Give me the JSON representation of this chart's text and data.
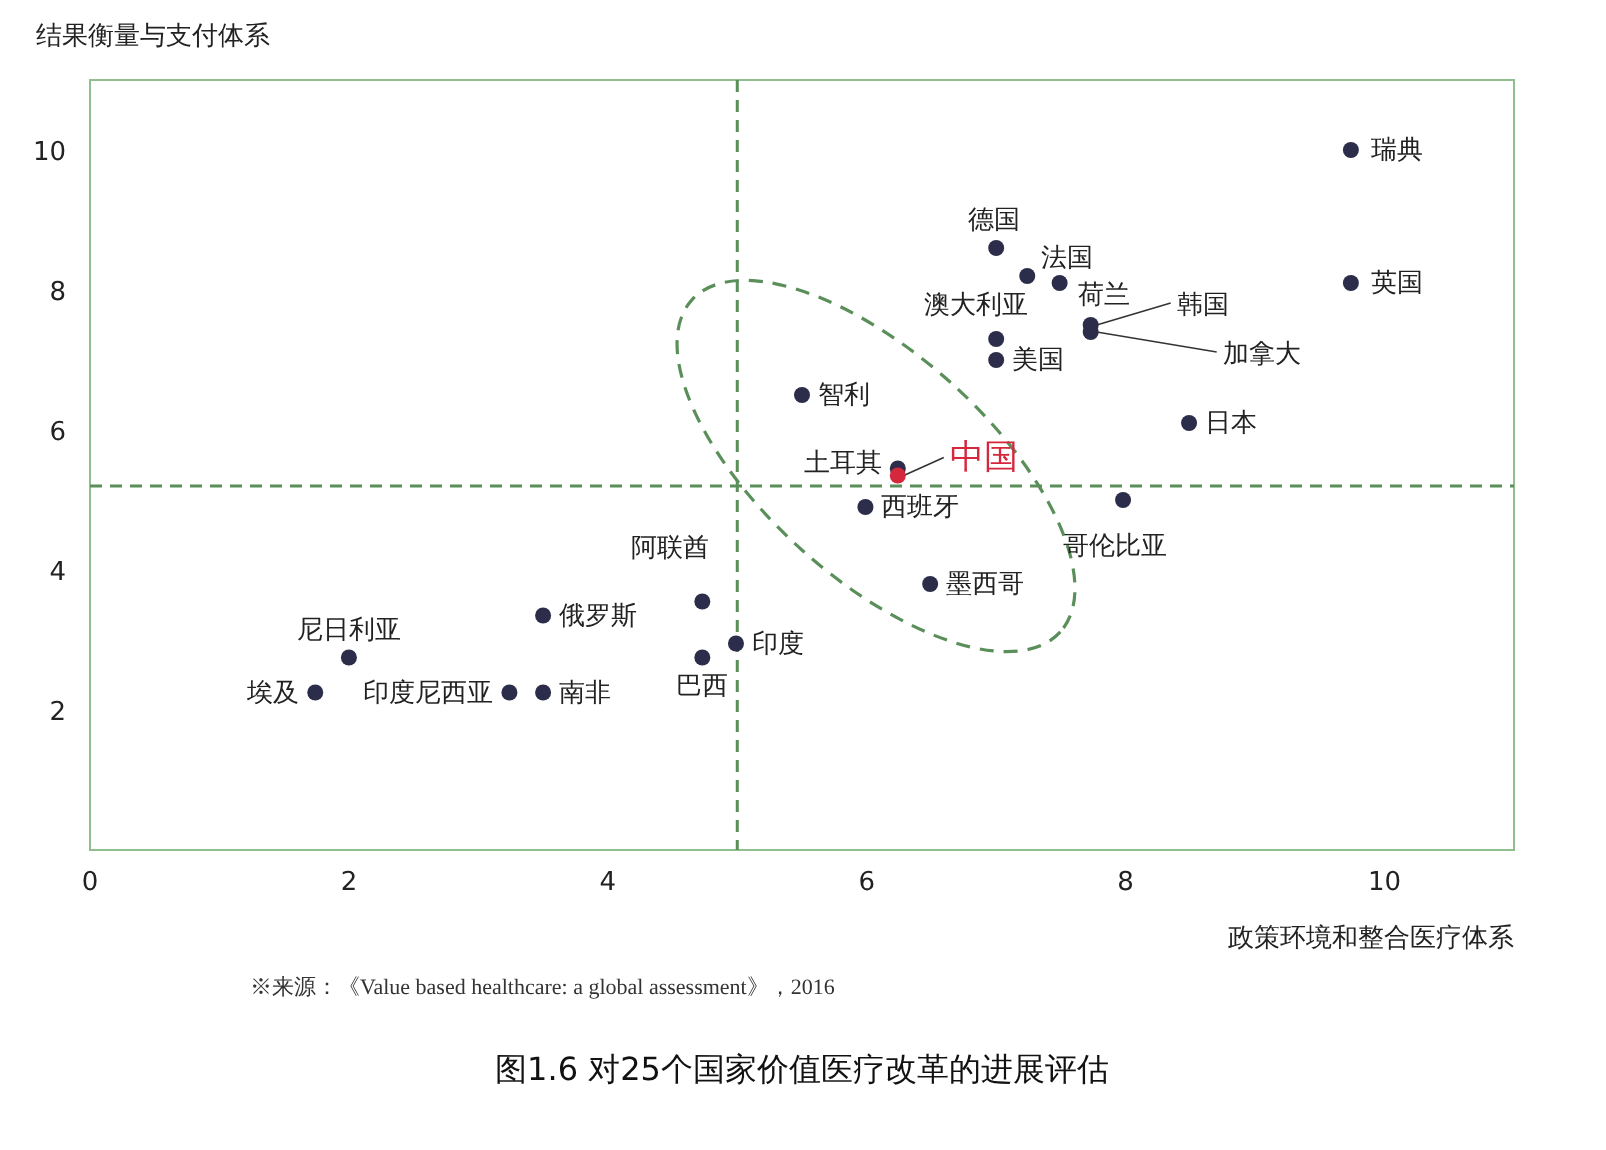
{
  "chart_data": {
    "type": "scatter",
    "title": "图1.6 对25个国家价值医疗改革的进展评估",
    "xlabel": "政策环境和整合医疗体系",
    "ylabel": "结果衡量与支付体系",
    "annotations": [
      "※来源：《Value based healthcare: a global assessment》，2016"
    ],
    "xlim": [
      0,
      11
    ],
    "ylim": [
      0,
      11
    ],
    "xticks": [
      0,
      2,
      4,
      6,
      8,
      10
    ],
    "yticks": [
      2,
      4,
      6,
      8,
      10
    ],
    "grid": false,
    "marker": "circle",
    "ref_lines": [
      {
        "axis": "x",
        "value": 5,
        "color": "#5a8f5a",
        "line_style": "dashed"
      },
      {
        "axis": "y",
        "value": 5.2,
        "color": "#5a8f5a",
        "line_style": "dashed"
      }
    ],
    "series": [
      {
        "color": "#2b2d4a",
        "x": [
          9.74,
          9.74,
          7.0,
          7.24,
          7.49,
          7.73,
          7.73,
          7.0,
          7.0,
          5.5,
          8.49,
          6.24,
          5.99,
          7.98,
          6.49,
          4.73,
          3.5,
          2.0,
          4.99,
          4.73,
          1.74,
          3.24,
          3.5
        ],
        "values": [
          10.0,
          8.1,
          8.6,
          8.2,
          8.1,
          7.5,
          7.4,
          7.3,
          7.0,
          6.5,
          6.1,
          5.45,
          4.9,
          5.0,
          3.8,
          3.55,
          3.35,
          2.75,
          2.95,
          2.75,
          2.25,
          2.25,
          2.25
        ],
        "value_labels": [
          "瑞典",
          "英国",
          "德国",
          "法国",
          "荷兰",
          "韩国",
          "加拿大",
          "澳大利亚",
          "美国",
          "智利",
          "日本",
          "土耳其",
          "西班牙",
          "哥伦比亚",
          "墨西哥",
          "阿联酋",
          "俄罗斯",
          "尼日利亚",
          "印度",
          "巴西",
          "埃及",
          "印度尼西亚",
          "南非"
        ]
      },
      {
        "color": "#d6283c",
        "x": [
          6.24
        ],
        "values": [
          5.35
        ],
        "value_labels": [
          "中国"
        ]
      }
    ]
  }
}
